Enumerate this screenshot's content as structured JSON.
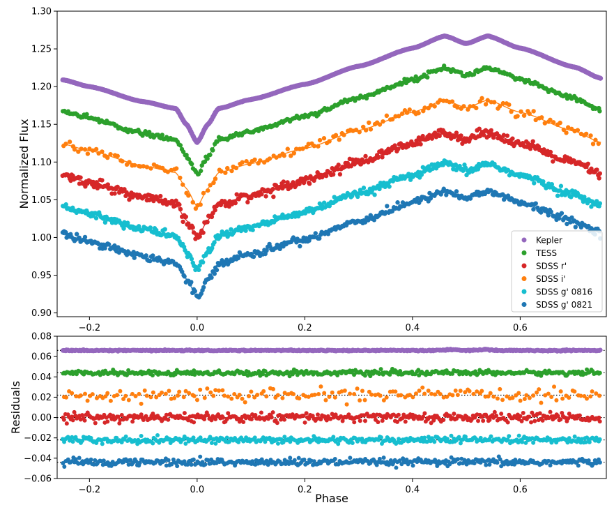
{
  "chart_data": [
    {
      "type": "scatter",
      "panel": "light curves",
      "ylabel": "Normalized Flux",
      "xlabel": "",
      "xlim": [
        -0.26,
        0.76
      ],
      "ylim": [
        0.895,
        1.3
      ],
      "xticks": [
        -0.2,
        0.0,
        0.2,
        0.4,
        0.6
      ],
      "xtick_labels": [
        "−0.2",
        "0.0",
        "0.2",
        "0.4",
        "0.6"
      ],
      "yticks": [
        0.9,
        0.95,
        1.0,
        1.05,
        1.1,
        1.15,
        1.2,
        1.25,
        1.3
      ],
      "ytick_labels": [
        "0.90",
        "0.95",
        "1.00",
        "1.05",
        "1.10",
        "1.15",
        "1.20",
        "1.25",
        "1.30"
      ],
      "legend": {
        "placement": "lower-right",
        "entries": [
          "Kepler",
          "TESS",
          "SDSS r'",
          "SDSS i'",
          "SDSS g' 0816",
          "SDSS g' 0821"
        ]
      },
      "series": [
        {
          "name": "Kepler",
          "color": "#9467bd",
          "offset": 0.205,
          "noise": 0.0005,
          "n_points": 700,
          "fit_line": false
        },
        {
          "name": "TESS",
          "color": "#2ca02c",
          "offset": 0.163,
          "noise": 0.0015,
          "n_points": 380,
          "fit_line": true
        },
        {
          "name": "SDSS i'",
          "color": "#ff7f0e",
          "offset": 0.12,
          "noise": 0.003,
          "n_points": 180,
          "fit_line": true
        },
        {
          "name": "SDSS r'",
          "color": "#d62728",
          "offset": 0.078,
          "noise": 0.003,
          "n_points": 480,
          "fit_line": true
        },
        {
          "name": "SDSS g' 0816",
          "color": "#17becf",
          "offset": 0.036,
          "noise": 0.0025,
          "n_points": 480,
          "fit_line": true
        },
        {
          "name": "SDSS g' 0821",
          "color": "#1f77b4",
          "offset": 0.0,
          "noise": 0.0025,
          "n_points": 420,
          "fit_line": true
        }
      ],
      "model_shape": {
        "phase": [
          -0.25,
          -0.2,
          -0.1,
          -0.04,
          -0.02,
          0.0,
          0.02,
          0.04,
          0.1,
          0.2,
          0.3,
          0.4,
          0.46,
          0.5,
          0.54,
          0.6,
          0.7,
          0.75
        ],
        "flux": [
          1.004,
          0.995,
          0.975,
          0.966,
          0.945,
          0.921,
          0.945,
          0.966,
          0.978,
          0.998,
          1.022,
          1.046,
          1.062,
          1.052,
          1.062,
          1.046,
          1.021,
          1.006
        ]
      }
    },
    {
      "type": "scatter",
      "panel": "residuals",
      "ylabel": "Residuals",
      "xlabel": "Phase",
      "xlim": [
        -0.26,
        0.76
      ],
      "ylim": [
        -0.06,
        0.08
      ],
      "xticks": [
        -0.2,
        0.0,
        0.2,
        0.4,
        0.6
      ],
      "xtick_labels": [
        "−0.2",
        "0.0",
        "0.2",
        "0.4",
        "0.6"
      ],
      "yticks": [
        -0.06,
        -0.04,
        -0.02,
        0.0,
        0.02,
        0.04,
        0.06,
        0.08
      ],
      "ytick_labels": [
        "−0.06",
        "−0.04",
        "−0.02",
        "0.00",
        "0.02",
        "0.04",
        "0.06",
        "0.08"
      ],
      "reference_lines": [
        0.066,
        0.044,
        0.022,
        0.0,
        -0.022,
        -0.044
      ],
      "series": [
        {
          "name": "Kepler",
          "color": "#9467bd",
          "level": 0.066,
          "noise": 0.0005
        },
        {
          "name": "TESS",
          "color": "#2ca02c",
          "level": 0.044,
          "noise": 0.0012
        },
        {
          "name": "SDSS i'",
          "color": "#ff7f0e",
          "level": 0.022,
          "noise": 0.003
        },
        {
          "name": "SDSS r'",
          "color": "#d62728",
          "level": 0.0,
          "noise": 0.0022
        },
        {
          "name": "SDSS g' 0816",
          "color": "#17becf",
          "level": -0.022,
          "noise": 0.0017
        },
        {
          "name": "SDSS g' 0821",
          "color": "#1f77b4",
          "level": -0.044,
          "noise": 0.0018
        }
      ]
    }
  ]
}
